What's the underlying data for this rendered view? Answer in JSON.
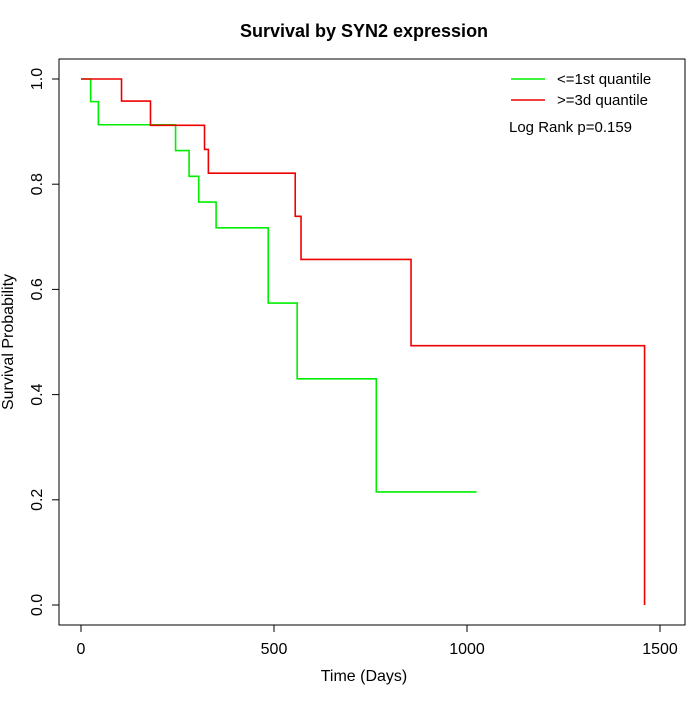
{
  "chart_data": {
    "type": "line",
    "style": "step",
    "title": "Survival by SYN2 expression",
    "xlabel": "Time (Days)",
    "ylabel": "Survival Probability",
    "xlim": [
      0,
      1500
    ],
    "ylim": [
      0,
      1
    ],
    "x_ticks": [
      0,
      500,
      1000,
      1500
    ],
    "y_ticks": [
      0.0,
      0.2,
      0.4,
      0.6,
      0.8,
      1.0
    ],
    "x_tick_labels": [
      "0",
      "500",
      "1000",
      "1500"
    ],
    "y_tick_labels": [
      "0.0",
      "0.2",
      "0.4",
      "0.6",
      "0.8",
      "1.0"
    ],
    "grid": false,
    "legend_position": "top-right",
    "annotation": "Log Rank p=0.159",
    "series": [
      {
        "name": "<=1st quantile",
        "color": "#00ee00",
        "x": [
          0,
          25,
          45,
          245,
          280,
          305,
          350,
          485,
          560,
          765,
          1025
        ],
        "y": [
          1.0,
          0.957,
          0.913,
          0.864,
          0.815,
          0.766,
          0.717,
          0.574,
          0.43,
          0.215,
          0.215
        ]
      },
      {
        "name": ">=3d quantile",
        "color": "#ee0000",
        "x": [
          0,
          105,
          180,
          320,
          330,
          555,
          570,
          855,
          1460,
          1460
        ],
        "y": [
          1.0,
          0.958,
          0.912,
          0.866,
          0.821,
          0.739,
          0.657,
          0.493,
          0.493,
          0.0
        ]
      }
    ]
  }
}
